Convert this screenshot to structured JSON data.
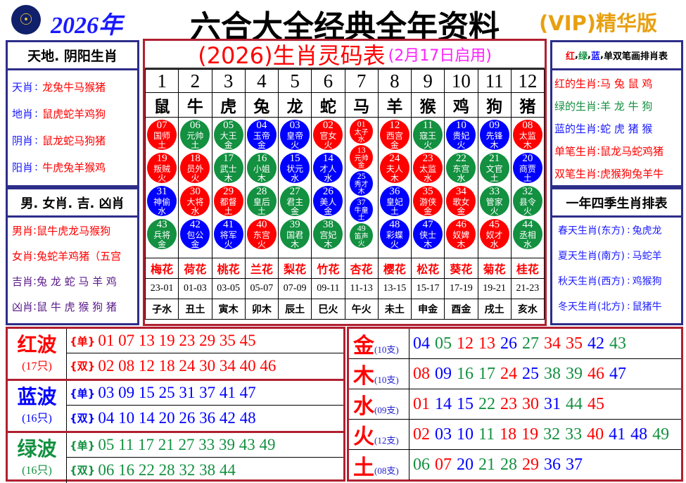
{
  "header": {
    "logo": "logo-emblem",
    "year": "2026年",
    "title": "六合大全经典全年资料",
    "vip": "(VIP)精华版"
  },
  "left": {
    "title1": "天地. 阴阳生肖",
    "rows1": [
      {
        "k": "天肖",
        "v": "龙兔牛马猴猪"
      },
      {
        "k": "地肖",
        "v": "鼠虎蛇羊鸡狗"
      },
      {
        "k": "阴肖",
        "v": "鼠龙蛇马狗猪"
      },
      {
        "k": "阳肖",
        "v": "牛虎兔羊猴鸡"
      }
    ],
    "title2": "男. 女肖. 吉. 凶肖",
    "rows2": [
      {
        "k": "男肖",
        "v": "鼠牛虎龙马猴狗",
        "c": "#ff0000"
      },
      {
        "k": "女肖",
        "v": "兔蛇羊鸡猪（五宫",
        "c": "#ff0000"
      },
      {
        "k": "吉肖",
        "v": "兔 龙 蛇 马 羊 鸡",
        "c": "#5a1a8a"
      },
      {
        "k": "凶肖",
        "v": "鼠 牛 虎 猴 狗 猪",
        "c": "#5a1a8a"
      }
    ]
  },
  "center": {
    "title": "(2026)生肖灵码表",
    "subtitle": "(2月17日启用)",
    "numbers": [
      "1",
      "2",
      "3",
      "4",
      "5",
      "6",
      "7",
      "8",
      "9",
      "10",
      "11",
      "12"
    ],
    "zodiac": [
      "鼠",
      "牛",
      "虎",
      "兔",
      "龙",
      "蛇",
      "马",
      "羊",
      "猴",
      "鸡",
      "狗",
      "猪"
    ],
    "balls": [
      [
        {
          "n": "07",
          "t": "国师",
          "e": "土",
          "c": "red"
        },
        {
          "n": "19",
          "t": "叛贼",
          "e": "火",
          "c": "red"
        },
        {
          "n": "31",
          "t": "神偷",
          "e": "水",
          "c": "blue"
        },
        {
          "n": "43",
          "t": "兵将",
          "e": "金",
          "c": "green"
        }
      ],
      [
        {
          "n": "06",
          "t": "元帅",
          "e": "土",
          "c": "green"
        },
        {
          "n": "18",
          "t": "员外",
          "e": "火",
          "c": "red"
        },
        {
          "n": "30",
          "t": "大将",
          "e": "水",
          "c": "red"
        },
        {
          "n": "42",
          "t": "包公",
          "e": "金",
          "c": "blue"
        }
      ],
      [
        {
          "n": "05",
          "t": "大王",
          "e": "金",
          "c": "green"
        },
        {
          "n": "17",
          "t": "武士",
          "e": "木",
          "c": "green"
        },
        {
          "n": "29",
          "t": "都督",
          "e": "土",
          "c": "red"
        },
        {
          "n": "41",
          "t": "将军",
          "e": "火",
          "c": "blue"
        }
      ],
      [
        {
          "n": "04",
          "t": "玉帝",
          "e": "金",
          "c": "blue"
        },
        {
          "n": "16",
          "t": "小姐",
          "e": "木",
          "c": "green"
        },
        {
          "n": "28",
          "t": "皇后",
          "e": "土",
          "c": "green"
        },
        {
          "n": "40",
          "t": "东宫",
          "e": "火",
          "c": "red"
        }
      ],
      [
        {
          "n": "03",
          "t": "皇帝",
          "e": "火",
          "c": "blue"
        },
        {
          "n": "15",
          "t": "状元",
          "e": "水",
          "c": "blue"
        },
        {
          "n": "27",
          "t": "君主",
          "e": "金",
          "c": "green"
        },
        {
          "n": "39",
          "t": "国君",
          "e": "木",
          "c": "green"
        }
      ],
      [
        {
          "n": "02",
          "t": "官女",
          "e": "火",
          "c": "red"
        },
        {
          "n": "14",
          "t": "才人",
          "e": "水",
          "c": "blue"
        },
        {
          "n": "26",
          "t": "美人",
          "e": "金",
          "c": "blue"
        },
        {
          "n": "38",
          "t": "宫妃",
          "e": "木",
          "c": "green"
        }
      ],
      [
        {
          "n": "01",
          "t": "太子",
          "e": "水",
          "c": "red"
        },
        {
          "n": "13",
          "t": "元帅",
          "e": "金",
          "c": "red"
        },
        {
          "n": "25",
          "t": "秀才",
          "e": "木",
          "c": "blue"
        },
        {
          "n": "37",
          "t": "牛童",
          "e": "土",
          "c": "blue"
        },
        {
          "n": "49",
          "t": "笛声",
          "e": "火",
          "c": "green"
        }
      ],
      [
        {
          "n": "12",
          "t": "西宫",
          "e": "金",
          "c": "red"
        },
        {
          "n": "24",
          "t": "夫人",
          "e": "木",
          "c": "red"
        },
        {
          "n": "36",
          "t": "皇妃",
          "e": "土",
          "c": "blue"
        },
        {
          "n": "48",
          "t": "彩蝶",
          "e": "火",
          "c": "blue"
        }
      ],
      [
        {
          "n": "11",
          "t": "寇王",
          "e": "火",
          "c": "green"
        },
        {
          "n": "23",
          "t": "太监",
          "e": "水",
          "c": "red"
        },
        {
          "n": "35",
          "t": "游侠",
          "e": "金",
          "c": "red"
        },
        {
          "n": "47",
          "t": "侠士",
          "e": "木",
          "c": "blue"
        }
      ],
      [
        {
          "n": "10",
          "t": "贵妃",
          "e": "火",
          "c": "blue"
        },
        {
          "n": "22",
          "t": "东宫",
          "e": "水",
          "c": "green"
        },
        {
          "n": "34",
          "t": "歌女",
          "e": "金",
          "c": "red"
        },
        {
          "n": "46",
          "t": "奴婢",
          "e": "木",
          "c": "red"
        }
      ],
      [
        {
          "n": "09",
          "t": "先锋",
          "e": "木",
          "c": "blue"
        },
        {
          "n": "21",
          "t": "文官",
          "e": "土",
          "c": "green"
        },
        {
          "n": "33",
          "t": "管家",
          "e": "火",
          "c": "green"
        },
        {
          "n": "45",
          "t": "奴才",
          "e": "水",
          "c": "red"
        }
      ],
      [
        {
          "n": "08",
          "t": "太监",
          "e": "木",
          "c": "red"
        },
        {
          "n": "20",
          "t": "商贾",
          "e": "土",
          "c": "blue"
        },
        {
          "n": "32",
          "t": "县令",
          "e": "火",
          "c": "green"
        },
        {
          "n": "44",
          "t": "丞相",
          "e": "水",
          "c": "green"
        }
      ]
    ],
    "flowers": [
      "梅花",
      "荷花",
      "桃花",
      "兰花",
      "梨花",
      "竹花",
      "杏花",
      "樱花",
      "松花",
      "葵花",
      "菊花",
      "桂花"
    ],
    "times": [
      "23-01",
      "01-03",
      "03-05",
      "05-07",
      "07-09",
      "09-11",
      "11-13",
      "13-15",
      "15-17",
      "17-19",
      "19-21",
      "21-23"
    ],
    "branches": [
      "子水",
      "丑土",
      "寅木",
      "卯木",
      "辰土",
      "巳火",
      "午火",
      "未土",
      "申金",
      "酉金",
      "戌土",
      "亥水"
    ]
  },
  "right": {
    "title1": {
      "red": "红",
      "green": "绿",
      "blue": "蓝",
      "rest": "单双笔画排肖表"
    },
    "rows1": [
      {
        "k": "红的生肖",
        "v": "马 兔 鼠 鸡",
        "c": "#ff0000"
      },
      {
        "k": "绿的生肖",
        "v": "羊 龙 牛 狗",
        "c": "#139040"
      },
      {
        "k": "蓝的生肖",
        "v": "蛇 虎 猪 猴",
        "c": "#1a1aff"
      },
      {
        "k": "单笔生肖",
        "v": "鼠龙马蛇鸡猪",
        "c": "#ff0000"
      },
      {
        "k": "双笔生肖",
        "v": "虎猴狗兔羊牛",
        "c": "#ff0000"
      }
    ],
    "title2": "一年四季生肖排表",
    "rows2": [
      {
        "k": "春天生肖",
        "d": "(东方)",
        "v": "兔虎龙"
      },
      {
        "k": "夏天生肖",
        "d": "(南方)",
        "v": "马蛇羊"
      },
      {
        "k": "秋天生肖",
        "d": "(西方)",
        "v": "鸡猴狗"
      },
      {
        "k": "冬天生肖",
        "d": "(北方)",
        "v": "鼠猪牛"
      }
    ]
  },
  "colors": {
    "red": "#ff0000",
    "green": "#139040",
    "blue": "#0000ff",
    "border_red": "#b02030",
    "border_navy": "#2d2d8a"
  },
  "waves": [
    {
      "name": "红波",
      "count": "(17只)",
      "color": "red",
      "odd_label": "{单}",
      "odd": "01 07 13 19 23 29 35 45",
      "even_label": "{双}",
      "even": "02 08 12 18 24 30 34 40 46"
    },
    {
      "name": "蓝波",
      "count": "(16只)",
      "color": "blue",
      "odd_label": "{单}",
      "odd": "03 09 15 25 31 37 41 47",
      "even_label": "{双}",
      "even": "04 10 14 20 26 36 42 48"
    },
    {
      "name": "绿波",
      "count": "(16只)",
      "color": "green",
      "odd_label": "{单}",
      "odd": "05 11 17 21 27 33 39 43 49",
      "even_label": "{双}",
      "even": "06 16 22 28 32 38 44"
    }
  ],
  "elements": [
    {
      "name": "金",
      "count": "(10支)",
      "nums": [
        "04",
        "05",
        "12",
        "13",
        "26",
        "27",
        "34",
        "35",
        "42",
        "43"
      ]
    },
    {
      "name": "木",
      "count": "(10支)",
      "nums": [
        "08",
        "09",
        "16",
        "17",
        "24",
        "25",
        "38",
        "39",
        "46",
        "47"
      ]
    },
    {
      "name": "水",
      "count": "(09支)",
      "nums": [
        "01",
        "14",
        "15",
        "22",
        "23",
        "30",
        "31",
        "44",
        "45"
      ]
    },
    {
      "name": "火",
      "count": "(12支)",
      "nums": [
        "02",
        "03",
        "10",
        "11",
        "18",
        "19",
        "32",
        "33",
        "40",
        "41",
        "48",
        "49"
      ]
    },
    {
      "name": "土",
      "count": "(08支)",
      "nums": [
        "06",
        "07",
        "20",
        "21",
        "28",
        "29",
        "36",
        "37"
      ]
    }
  ]
}
